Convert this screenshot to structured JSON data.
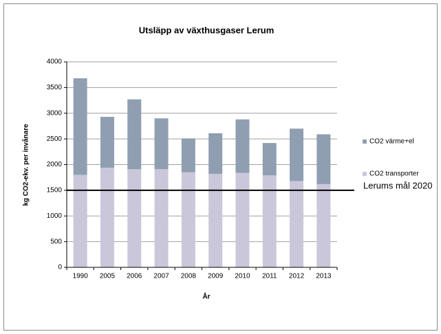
{
  "chart_data": {
    "type": "stacked_bar",
    "title": "Utsläpp av växthusgaser Lerum",
    "xlabel": "År",
    "ylabel": "kg CO2-ekv. per invånare",
    "categories": [
      "1990",
      "2005",
      "2006",
      "2007",
      "2008",
      "2009",
      "2010",
      "2011",
      "2012",
      "2013"
    ],
    "series": [
      {
        "name": "CO2 transporter",
        "color": "#cbc7da",
        "values": [
          1800,
          1940,
          1910,
          1910,
          1850,
          1820,
          1840,
          1790,
          1680,
          1620
        ]
      },
      {
        "name": "CO2 värme+el",
        "color": "#8f9fb1",
        "values": [
          1880,
          990,
          1360,
          990,
          660,
          790,
          1040,
          630,
          1020,
          970
        ]
      }
    ],
    "ylim": [
      0,
      4000
    ],
    "yticks": [
      0,
      500,
      1000,
      1500,
      2000,
      2500,
      3000,
      3500,
      4000
    ],
    "grid": true,
    "reference_line": {
      "value": 1500,
      "label": "Lerums mål 2020"
    }
  }
}
